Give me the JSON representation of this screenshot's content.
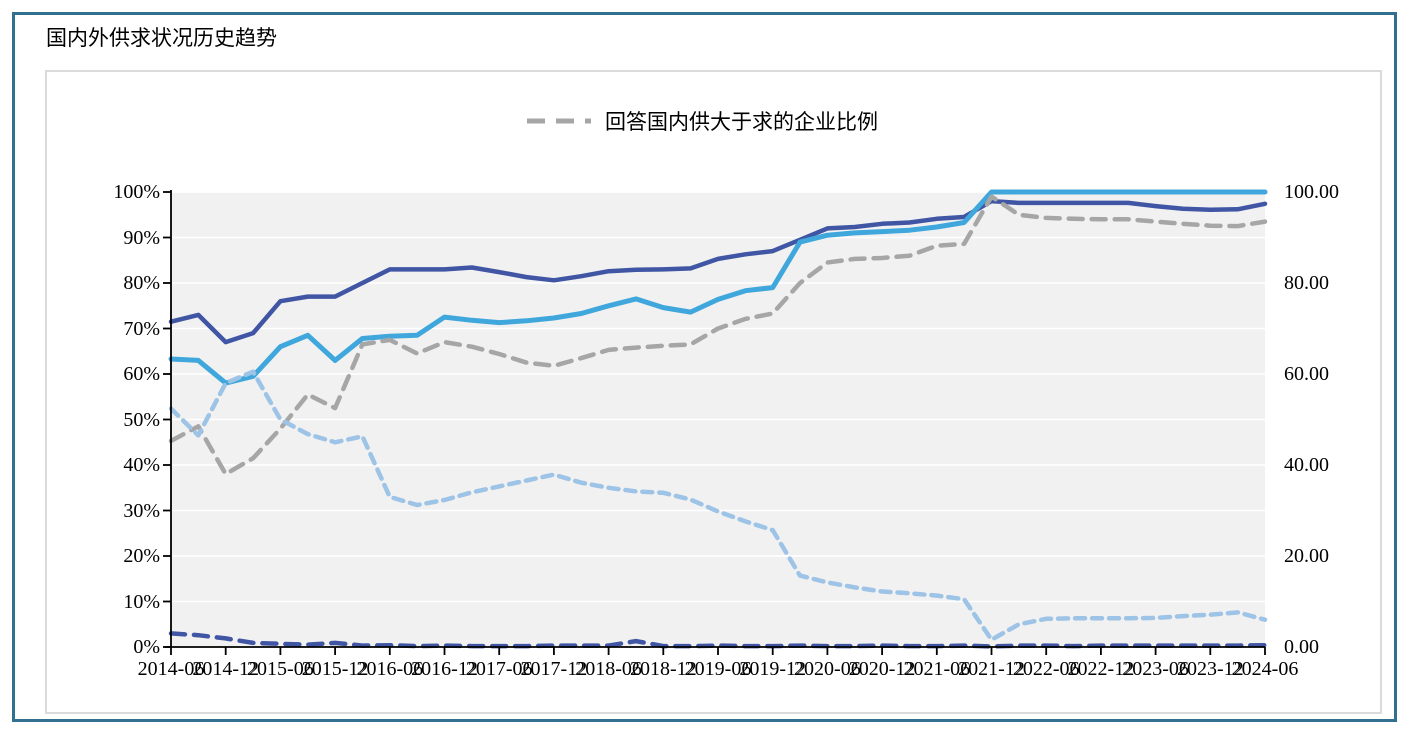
{
  "page": {
    "title": "国内外供求状况历史趋势"
  },
  "legend": {
    "label": "回答国内供大于求的企业比例",
    "color": "#A6A6A6"
  },
  "chart_data": {
    "type": "line",
    "title": "国内外供求状况历史趋势",
    "grid": true,
    "legend_position": "top-center",
    "plot_bg": "#F1F1F2",
    "x": [
      "2014-06",
      "2014-09",
      "2014-12",
      "2015-03",
      "2015-06",
      "2015-09",
      "2015-12",
      "2016-03",
      "2016-06",
      "2016-09",
      "2016-12",
      "2017-03",
      "2017-06",
      "2017-09",
      "2017-12",
      "2018-03",
      "2018-06",
      "2018-09",
      "2018-12",
      "2019-03",
      "2019-06",
      "2019-09",
      "2019-12",
      "2020-03",
      "2020-06",
      "2020-09",
      "2020-12",
      "2021-03",
      "2021-06",
      "2021-09",
      "2021-12",
      "2022-03",
      "2022-06",
      "2022-09",
      "2022-12",
      "2023-03",
      "2023-06",
      "2023-09",
      "2023-12",
      "2024-03",
      "2024-06"
    ],
    "x_tick_labels": [
      "2014-06",
      "2014-12",
      "2015-06",
      "2015-12",
      "2016-06",
      "2016-12",
      "2017-06",
      "2017-12",
      "2018-06",
      "2018-12",
      "2019-06",
      "2019-12",
      "2020-06",
      "2020-12",
      "2021-06",
      "2021-12",
      "2022-06",
      "2022-12",
      "2023-06",
      "2023-12",
      "2024-06"
    ],
    "left_axis": {
      "min": 0,
      "max": 100,
      "labels": [
        "100%",
        "90%",
        "80%",
        "70%",
        "60%",
        "50%",
        "40%",
        "30%",
        "20%",
        "10%",
        "0%"
      ]
    },
    "right_axis": {
      "min": 0,
      "max": 100,
      "labels": [
        "100.00",
        "80.00",
        "60.00",
        "40.00",
        "20.00",
        "0.00"
      ]
    },
    "series": [
      {
        "name": "dark-blue-solid",
        "label": "",
        "color": "#4056A4",
        "dash": null,
        "width": 4.5,
        "values": [
          71.5,
          73,
          67,
          69,
          76,
          77,
          77,
          80,
          83,
          83,
          83,
          83.4,
          82.4,
          81.3,
          80.6,
          81.5,
          82.6,
          82.9,
          83,
          83.2,
          85.3,
          86.3,
          87,
          89.5,
          92,
          92.3,
          93,
          93.3,
          94.1,
          94.5,
          98,
          97.6,
          97.6,
          97.6,
          97.6,
          97.6,
          96.9,
          96.3,
          96.1,
          96.2,
          97.4
        ]
      },
      {
        "name": "light-blue-solid",
        "label": "",
        "color": "#3FA7DC",
        "dash": null,
        "width": 5,
        "values": [
          63.3,
          63,
          58,
          59.5,
          66,
          68.5,
          63,
          67.8,
          68.3,
          68.5,
          72.5,
          71.8,
          71.3,
          71.7,
          72.3,
          73.3,
          75,
          76.5,
          74.6,
          73.6,
          76.4,
          78.3,
          79,
          89,
          90.5,
          91,
          91.3,
          91.6,
          92.3,
          93.3,
          100,
          100,
          100,
          100,
          100,
          100,
          100,
          100,
          100,
          100,
          100
        ]
      },
      {
        "name": "gray-dashed",
        "label": "回答国内供大于求的企业比例",
        "color": "#A6A6A6",
        "dash": [
          14,
          9
        ],
        "width": 4.5,
        "values": [
          45.3,
          48.5,
          38,
          41.5,
          48,
          55.5,
          52.5,
          66.5,
          67.5,
          64.5,
          67,
          66,
          64.4,
          62.5,
          61.8,
          63.5,
          65.3,
          65.8,
          66.2,
          66.5,
          70,
          72.1,
          73.3,
          80,
          84.5,
          85.3,
          85.5,
          86,
          88.2,
          88.6,
          99,
          95,
          94.3,
          94.1,
          94,
          94,
          93.5,
          93,
          92.6,
          92.5,
          93.5
        ]
      },
      {
        "name": "light-blue-dashed",
        "label": "",
        "color": "#9DC3E6",
        "dash": [
          10,
          7
        ],
        "width": 4.5,
        "values": [
          52.4,
          46.5,
          58,
          60.5,
          50,
          46.8,
          45,
          46.3,
          33,
          31.2,
          32.3,
          34,
          35.3,
          36.6,
          37.9,
          36.1,
          35,
          34.2,
          33.9,
          32.4,
          29.8,
          27.6,
          25.7,
          15.7,
          14.2,
          13.1,
          12.2,
          11.8,
          11.3,
          10.5,
          1.6,
          5,
          6.2,
          6.3,
          6.3,
          6.3,
          6.4,
          6.8,
          7.1,
          7.6,
          6
        ]
      },
      {
        "name": "dark-blue-dashed",
        "label": "",
        "color": "#4056A4",
        "dash": [
          14,
          9
        ],
        "width": 4.5,
        "values": [
          3,
          2.6,
          1.9,
          0.9,
          0.7,
          0.5,
          0.9,
          0.3,
          0.4,
          0.2,
          0.3,
          0.2,
          0.2,
          0.2,
          0.3,
          0.3,
          0.3,
          1.3,
          0.2,
          0.2,
          0.3,
          0.2,
          0.2,
          0.3,
          0.2,
          0.2,
          0.3,
          0.2,
          0.2,
          0.3,
          0.1,
          0.3,
          0.3,
          0.2,
          0.3,
          0.3,
          0.3,
          0.3,
          0.3,
          0.3,
          0.4
        ]
      }
    ]
  },
  "colors": {
    "outer_border": "#31708F",
    "panel_border": "#DBDBDB",
    "plot_background": "#F1F1F2",
    "gridline": "#FFFFFF",
    "axis": "#000000"
  }
}
